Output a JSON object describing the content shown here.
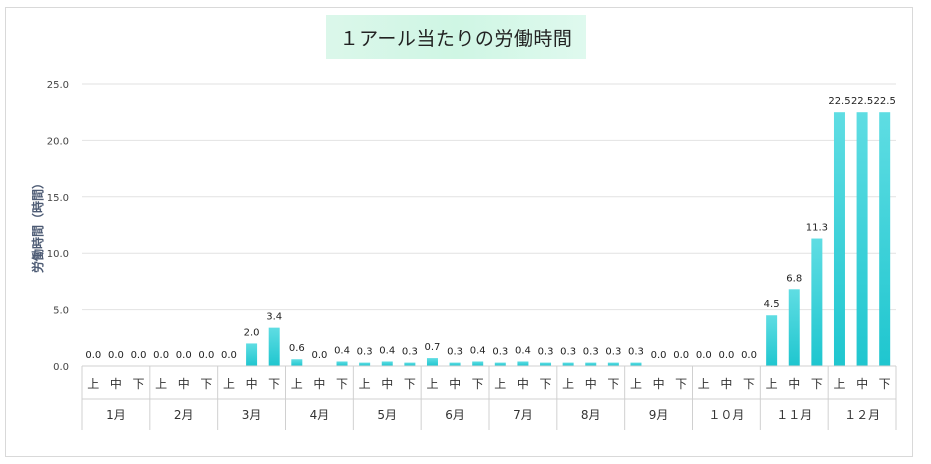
{
  "chart_data": {
    "type": "bar",
    "title": "１アール当たりの労働時間",
    "ylabel": "労働時間（時間）",
    "xlabel": "",
    "ylim": [
      0,
      25
    ],
    "yticks": [
      "0.0",
      "5.0",
      "10.0",
      "15.0",
      "20.0",
      "25.0"
    ],
    "grid": true,
    "legend": "none",
    "months": [
      "1月",
      "2月",
      "3月",
      "4月",
      "5月",
      "6月",
      "7月",
      "8月",
      "9月",
      "１０月",
      "１１月",
      "１２月"
    ],
    "periods": [
      "上",
      "中",
      "下"
    ],
    "values": [
      0.0,
      0.0,
      0.0,
      0.0,
      0.0,
      0.0,
      0.0,
      2.0,
      3.4,
      0.6,
      0.0,
      0.4,
      0.3,
      0.4,
      0.3,
      0.7,
      0.3,
      0.4,
      0.3,
      0.4,
      0.3,
      0.3,
      0.3,
      0.3,
      0.3,
      0.0,
      0.0,
      0.0,
      0.0,
      0.0,
      4.5,
      6.8,
      11.3,
      22.5,
      22.5,
      22.5
    ],
    "labels": [
      "0.0",
      "0.0",
      "0.0",
      "0.0",
      "0.0",
      "0.0",
      "0.0",
      "2.0",
      "3.4",
      "0.6",
      "0.0",
      "0.4",
      "0.3",
      "0.4",
      "0.3",
      "0.7",
      "0.3",
      "0.4",
      "0.3",
      "0.4",
      "0.3",
      "0.3",
      "0.3",
      "0.3",
      "0.3",
      "0.0",
      "0.0",
      "0.0",
      "0.0",
      "0.0",
      "4.5",
      "6.8",
      "11.3",
      "22.5",
      "22.5",
      "22.5"
    ],
    "bar_color": "#1fc6cf",
    "bar_color_light": "#5fdde3"
  }
}
